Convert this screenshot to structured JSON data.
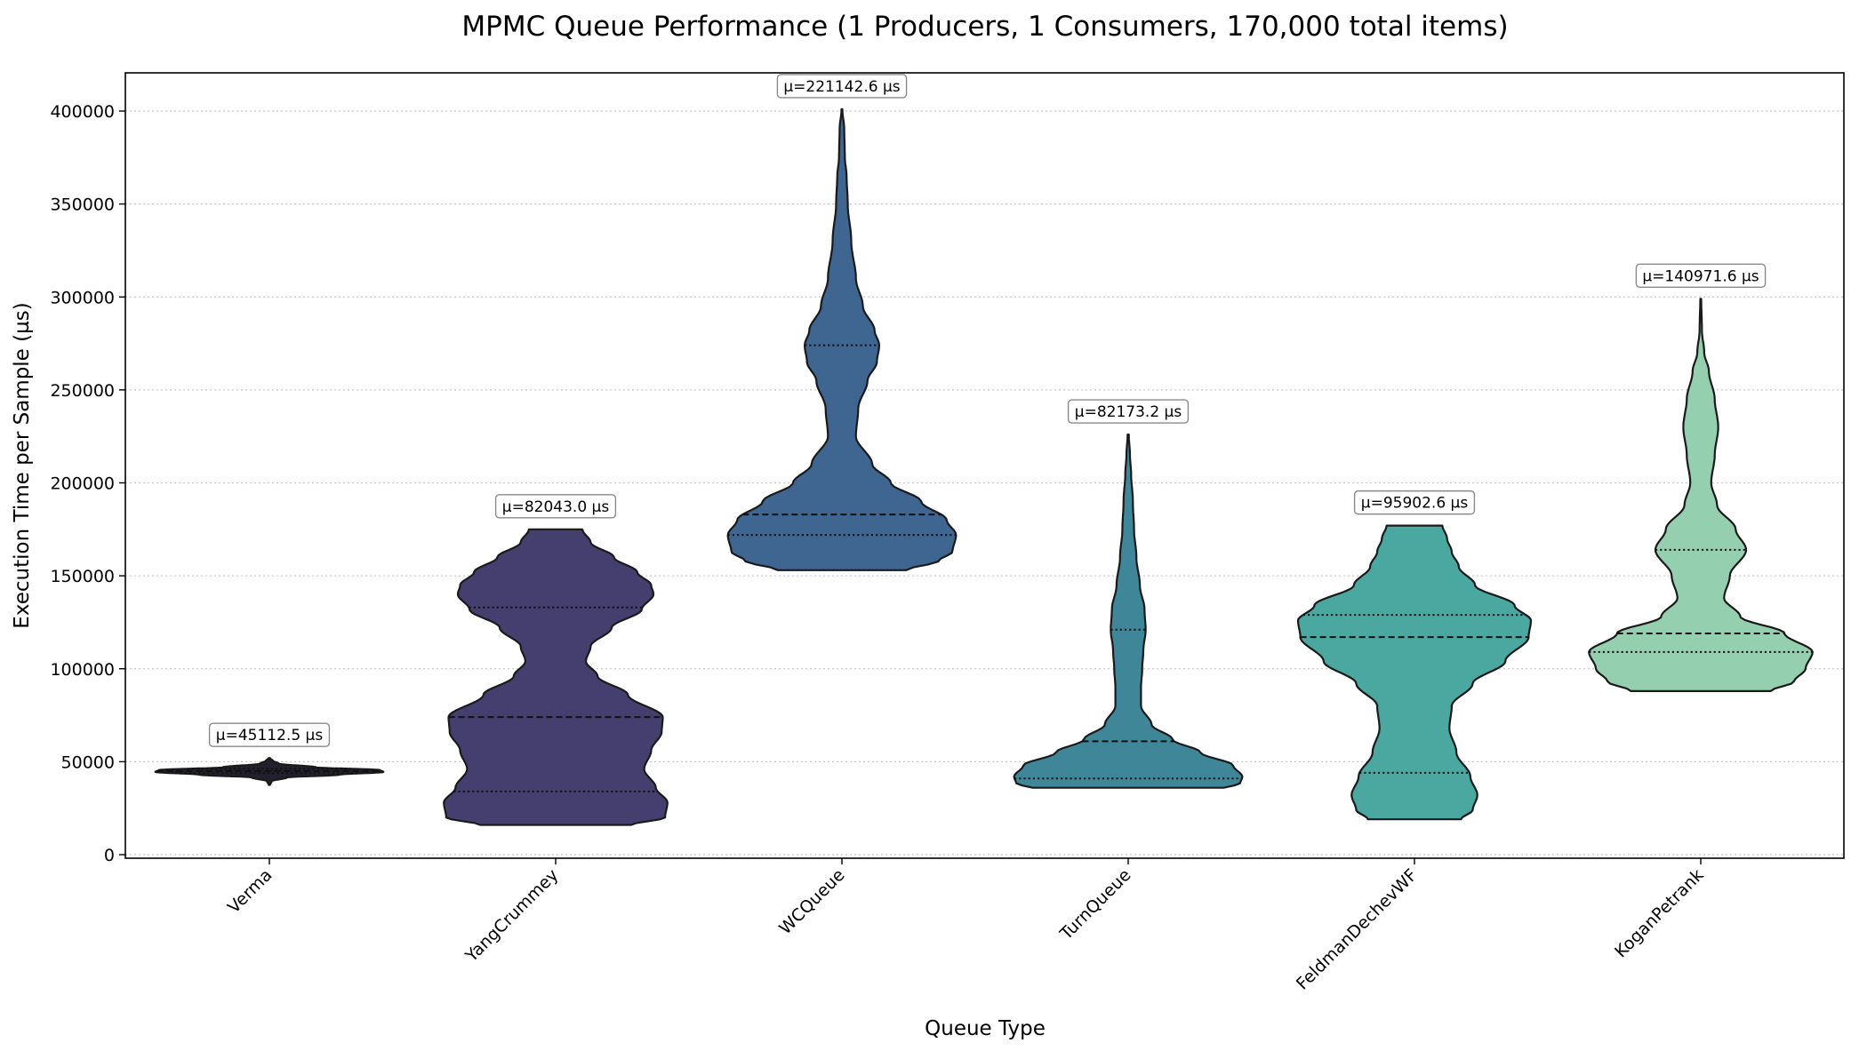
{
  "chart_data": {
    "type": "violin",
    "title": "MPMC Queue Performance (1 Producers, 1 Consumers, 170,000 total items)",
    "xlabel": "Queue Type",
    "ylabel": "Execution Time per Sample (µs)",
    "ylim": [
      -2000,
      420000
    ],
    "yticks": [
      0,
      50000,
      100000,
      150000,
      200000,
      250000,
      300000,
      350000,
      400000
    ],
    "ytick_labels": [
      "0",
      "50000",
      "100000",
      "150000",
      "200000",
      "250000",
      "300000",
      "350000",
      "400000"
    ],
    "grid": "y-dotted",
    "categories": [
      "Verma",
      "YangCrummey",
      "WCQueue",
      "TurnQueue",
      "FeldmanDechevWF",
      "KoganPetrank"
    ],
    "series": [
      {
        "category": "Verma",
        "color": "#23202e",
        "mean_label": "µ=45112.5 µs",
        "range": [
          37500,
          52000
        ],
        "quartiles": [
          43800,
          45000,
          46200
        ],
        "profile": [
          [
            37500,
            0.005
          ],
          [
            39500,
            0.02
          ],
          [
            41500,
            0.15
          ],
          [
            43000,
            0.6
          ],
          [
            44500,
            0.98
          ],
          [
            45500,
            0.95
          ],
          [
            47000,
            0.4
          ],
          [
            49000,
            0.08
          ],
          [
            50500,
            0.03
          ],
          [
            52000,
            0.005
          ]
        ]
      },
      {
        "category": "YangCrummey",
        "color": "#443f6e",
        "mean_label": "µ=82043.0 µs",
        "range": [
          16000,
          175000
        ],
        "quartiles": [
          34000,
          74000,
          133000
        ],
        "profile": [
          [
            16000,
            0.65
          ],
          [
            20000,
            0.94
          ],
          [
            28000,
            0.96
          ],
          [
            36000,
            0.86
          ],
          [
            46000,
            0.76
          ],
          [
            56000,
            0.82
          ],
          [
            66000,
            0.91
          ],
          [
            74000,
            0.92
          ],
          [
            86000,
            0.62
          ],
          [
            96000,
            0.36
          ],
          [
            104000,
            0.26
          ],
          [
            112000,
            0.3
          ],
          [
            122000,
            0.48
          ],
          [
            132000,
            0.74
          ],
          [
            140000,
            0.84
          ],
          [
            145000,
            0.82
          ],
          [
            152000,
            0.7
          ],
          [
            160000,
            0.5
          ],
          [
            168000,
            0.3
          ],
          [
            175000,
            0.23
          ]
        ]
      },
      {
        "category": "WCQueue",
        "color": "#3f6591",
        "mean_label": "µ=221142.6 µs",
        "range": [
          153000,
          401000
        ],
        "quartiles": [
          172000,
          183000,
          274000
        ],
        "profile": [
          [
            153000,
            0.55
          ],
          [
            158000,
            0.83
          ],
          [
            163000,
            0.95
          ],
          [
            172000,
            0.98
          ],
          [
            180000,
            0.9
          ],
          [
            190000,
            0.68
          ],
          [
            200000,
            0.42
          ],
          [
            210000,
            0.26
          ],
          [
            225000,
            0.12
          ],
          [
            240000,
            0.14
          ],
          [
            255000,
            0.22
          ],
          [
            265000,
            0.3
          ],
          [
            274000,
            0.32
          ],
          [
            282000,
            0.28
          ],
          [
            295000,
            0.18
          ],
          [
            310000,
            0.12
          ],
          [
            330000,
            0.08
          ],
          [
            350000,
            0.05
          ],
          [
            365000,
            0.04
          ],
          [
            375000,
            0.025
          ],
          [
            390000,
            0.02
          ],
          [
            401000,
            0.004
          ]
        ]
      },
      {
        "category": "TurnQueue",
        "color": "#3f8798",
        "mean_label": "µ=82173.2 µs",
        "range": [
          36000,
          226000
        ],
        "quartiles": [
          41000,
          61000,
          121000
        ],
        "profile": [
          [
            36000,
            0.82
          ],
          [
            38000,
            0.96
          ],
          [
            42000,
            0.98
          ],
          [
            48000,
            0.9
          ],
          [
            55000,
            0.62
          ],
          [
            62000,
            0.38
          ],
          [
            70000,
            0.2
          ],
          [
            80000,
            0.11
          ],
          [
            90000,
            0.11
          ],
          [
            100000,
            0.12
          ],
          [
            110000,
            0.13
          ],
          [
            121000,
            0.15
          ],
          [
            132000,
            0.14
          ],
          [
            145000,
            0.1
          ],
          [
            160000,
            0.07
          ],
          [
            175000,
            0.05
          ],
          [
            190000,
            0.04
          ],
          [
            205000,
            0.025
          ],
          [
            215000,
            0.015
          ],
          [
            226000,
            0.005
          ]
        ]
      },
      {
        "category": "FeldmanDechevWF",
        "color": "#4aa8a0",
        "mean_label": "µ=95902.6 µs",
        "range": [
          19000,
          177000
        ],
        "quartiles": [
          44000,
          117000,
          129000
        ],
        "profile": [
          [
            19000,
            0.4
          ],
          [
            24000,
            0.5
          ],
          [
            32000,
            0.54
          ],
          [
            42000,
            0.48
          ],
          [
            55000,
            0.36
          ],
          [
            68000,
            0.3
          ],
          [
            80000,
            0.32
          ],
          [
            92000,
            0.5
          ],
          [
            104000,
            0.78
          ],
          [
            117000,
            0.98
          ],
          [
            126000,
            1.0
          ],
          [
            134000,
            0.86
          ],
          [
            145000,
            0.52
          ],
          [
            155000,
            0.38
          ],
          [
            163000,
            0.32
          ],
          [
            170000,
            0.28
          ],
          [
            177000,
            0.24
          ]
        ]
      },
      {
        "category": "KoganPetrank",
        "color": "#94cfb0",
        "mean_label": "µ=140971.6 µs",
        "range": [
          88000,
          299000
        ],
        "quartiles": [
          109000,
          119000,
          164000
        ],
        "profile": [
          [
            88000,
            0.6
          ],
          [
            93000,
            0.8
          ],
          [
            100000,
            0.9
          ],
          [
            109000,
            0.96
          ],
          [
            119000,
            0.72
          ],
          [
            128000,
            0.34
          ],
          [
            138000,
            0.2
          ],
          [
            150000,
            0.25
          ],
          [
            164000,
            0.39
          ],
          [
            175000,
            0.3
          ],
          [
            188000,
            0.14
          ],
          [
            200000,
            0.09
          ],
          [
            215000,
            0.12
          ],
          [
            230000,
            0.15
          ],
          [
            245000,
            0.12
          ],
          [
            260000,
            0.07
          ],
          [
            270000,
            0.03
          ],
          [
            282000,
            0.01
          ],
          [
            299000,
            0.004
          ]
        ]
      }
    ]
  }
}
